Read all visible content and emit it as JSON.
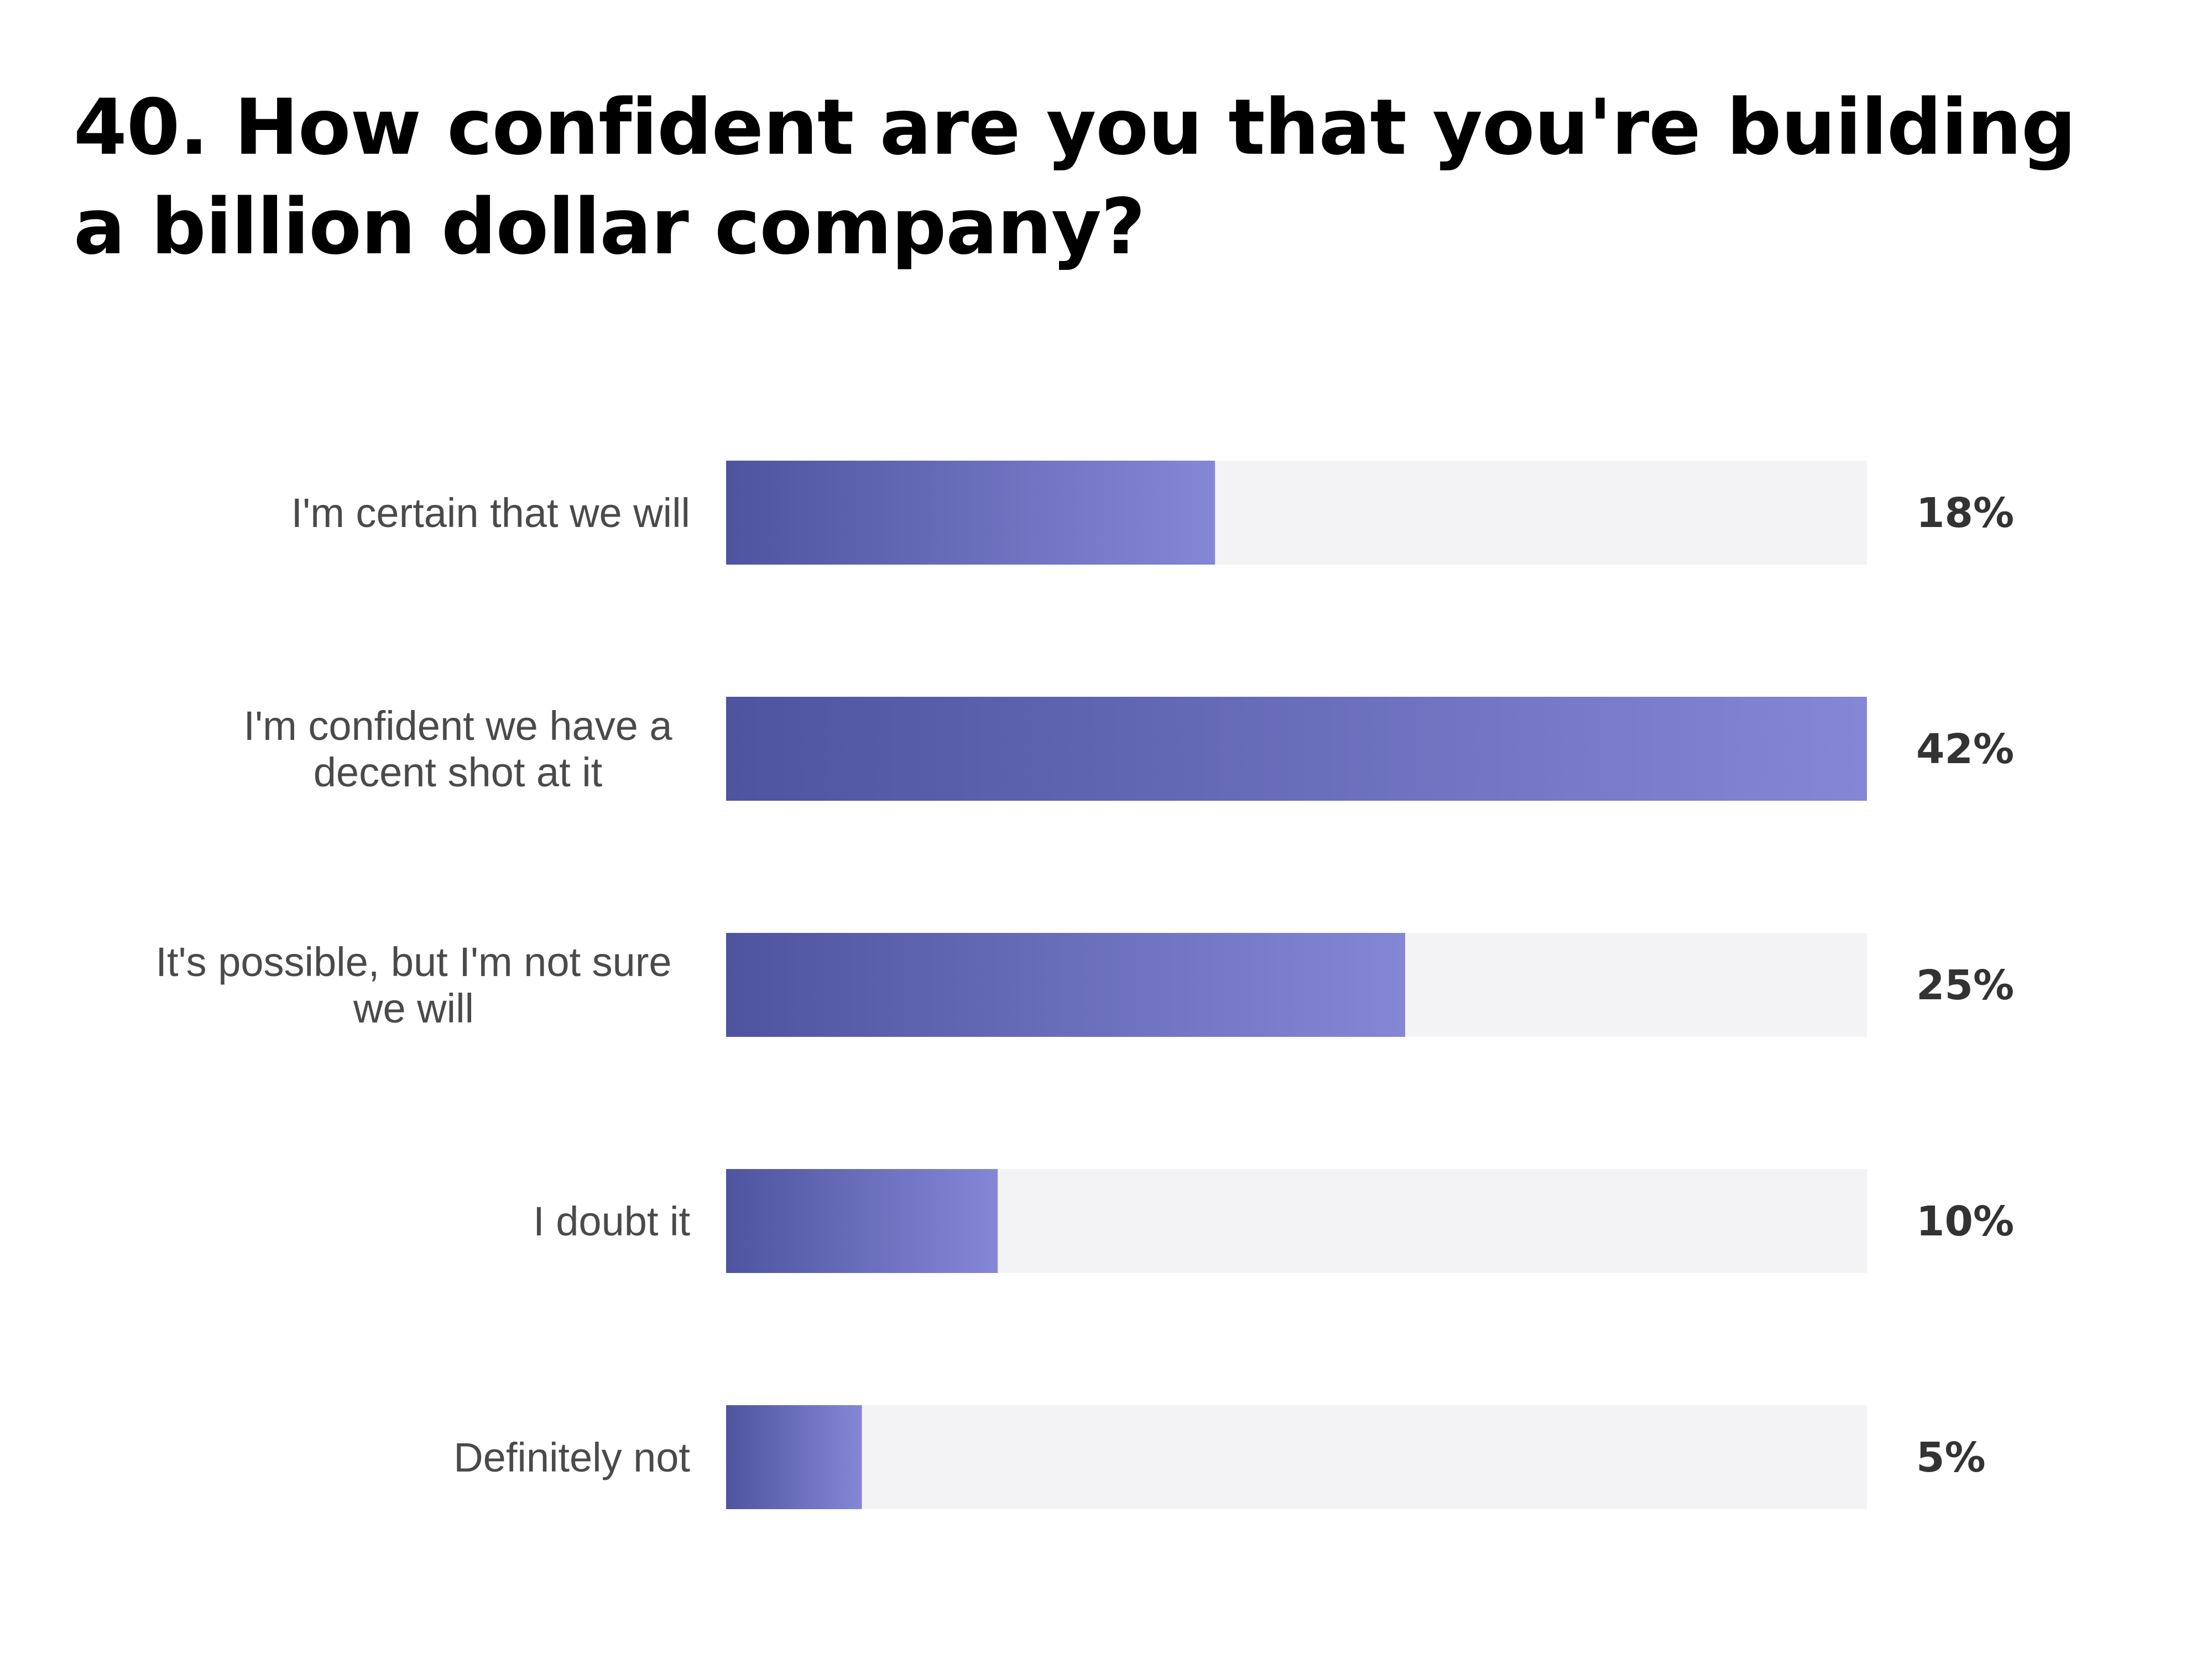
{
  "colors": {
    "bar_start": "#4e54a0",
    "bar_end": "#8487d6",
    "track": "#f3f3f5",
    "title": "#000000",
    "category_text": "#4a4a4a",
    "value_text": "#333333"
  },
  "chart_data": {
    "type": "bar",
    "orientation": "horizontal",
    "title": "40. How confident are you that you're building a billion dollar company?",
    "categories": [
      "I'm certain that we will",
      "I'm confident we have a decent shot at it",
      "It's possible, but I'm not sure we will",
      "I doubt it",
      "Definitely not"
    ],
    "category_lines": [
      [
        "I'm certain that we will"
      ],
      [
        "I'm confident we have a",
        "decent shot at it"
      ],
      [
        "It's possible, but I'm not sure",
        "we will"
      ],
      [
        "I doubt it"
      ],
      [
        "Definitely not"
      ]
    ],
    "values": [
      18,
      42,
      25,
      10,
      5
    ],
    "value_labels": [
      "18%",
      "42%",
      "25%",
      "10%",
      "5%"
    ],
    "unit": "%",
    "xlim": [
      0,
      42
    ],
    "grid": false,
    "legend": "none"
  }
}
